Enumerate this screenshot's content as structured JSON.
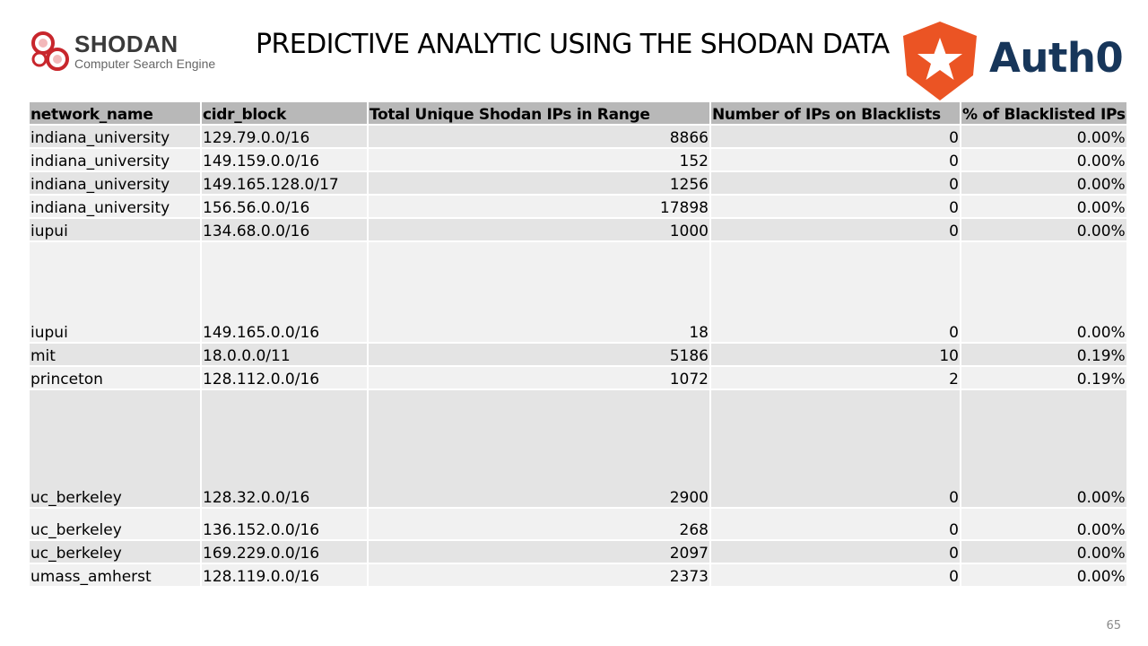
{
  "header": {
    "shodan_logo": {
      "name": "SHODAN",
      "tagline": "Computer Search Engine"
    },
    "title": "PREDICTIVE ANALYTIC USING THE SHODAN DATA",
    "auth0_logo": {
      "wordmark": "Auth0",
      "brand_color": "#eb5424",
      "text_color": "#17365a"
    }
  },
  "table": {
    "columns": [
      "network_name",
      "cidr_block",
      "Total Unique Shodan IPs in Range",
      "Number of IPs on Blacklists",
      "% of Blacklisted IPs"
    ],
    "rows": [
      [
        "indiana_university",
        "129.79.0.0/16",
        "8866",
        "0",
        "0.00%"
      ],
      [
        "indiana_university",
        "149.159.0.0/16",
        "152",
        "0",
        "0.00%"
      ],
      [
        "indiana_university",
        "149.165.128.0/17",
        "1256",
        "0",
        "0.00%"
      ],
      [
        "indiana_university",
        "156.56.0.0/16",
        "17898",
        "0",
        "0.00%"
      ],
      [
        "iupui",
        "134.68.0.0/16",
        "1000",
        "0",
        "0.00%"
      ],
      [
        "iupui",
        "149.165.0.0/16",
        "18",
        "0",
        "0.00%"
      ],
      [
        "mit",
        "18.0.0.0/11",
        "5186",
        "10",
        "0.19%"
      ],
      [
        "princeton",
        "128.112.0.0/16",
        "1072",
        "2",
        "0.19%"
      ],
      [
        "uc_berkeley",
        "128.32.0.0/16",
        "2900",
        "0",
        "0.00%"
      ],
      [
        "uc_berkeley",
        "136.152.0.0/16",
        "268",
        "0",
        "0.00%"
      ],
      [
        "uc_berkeley",
        "169.229.0.0/16",
        "2097",
        "0",
        "0.00%"
      ],
      [
        "umass_amherst",
        "128.119.0.0/16",
        "2373",
        "0",
        "0.00%"
      ]
    ],
    "colors": {
      "header_bg": "#b8b8b8",
      "row_dark": "#e4e4e4",
      "row_light": "#f1f1f1"
    }
  },
  "footer": {
    "page_number": "65"
  }
}
